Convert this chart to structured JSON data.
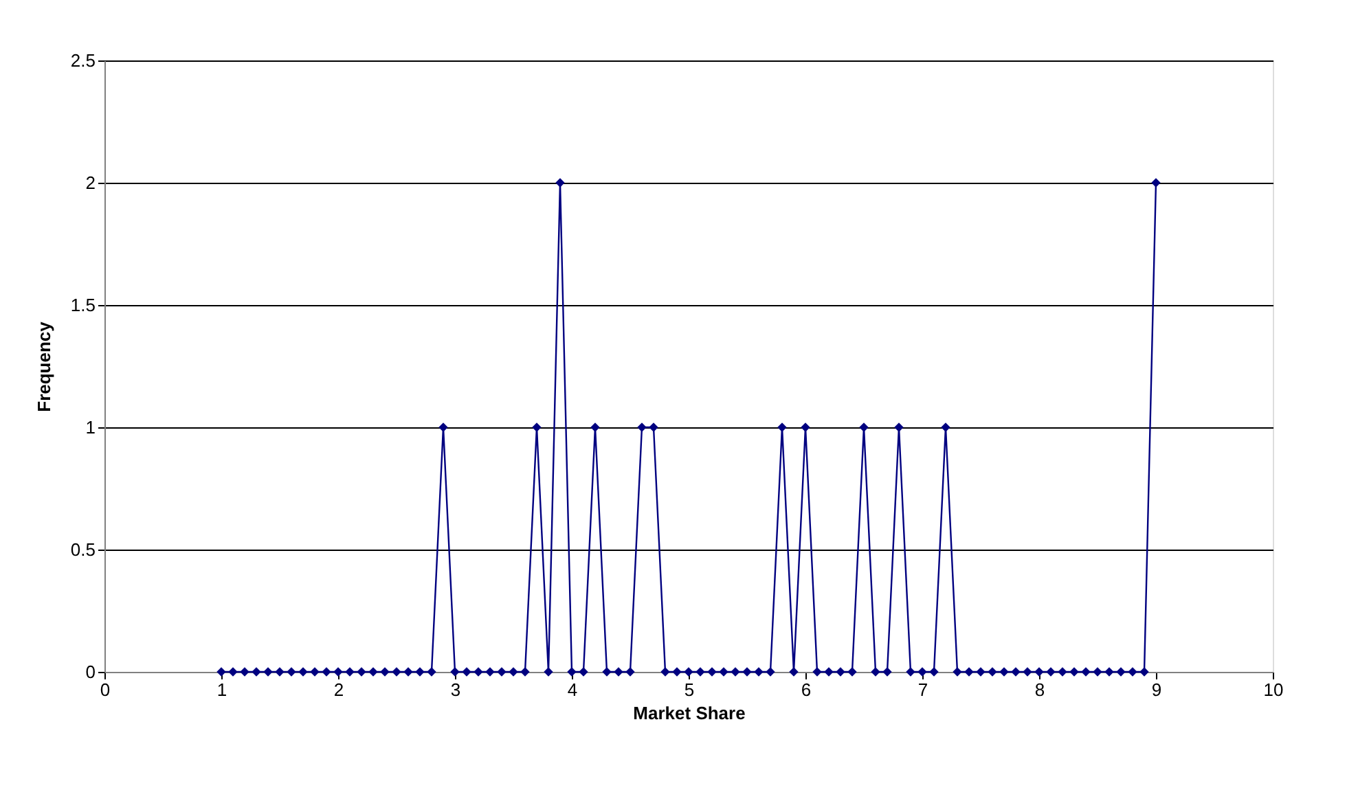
{
  "chart_data": {
    "type": "line",
    "xlabel": "Market Share",
    "ylabel": "Frequency",
    "x": [
      1.0,
      1.1,
      1.2,
      1.3,
      1.4,
      1.5,
      1.6,
      1.7,
      1.8,
      1.9,
      2.0,
      2.1,
      2.2,
      2.3,
      2.4,
      2.5,
      2.6,
      2.7,
      2.8,
      2.9,
      3.0,
      3.1,
      3.2,
      3.3,
      3.4,
      3.5,
      3.6,
      3.7,
      3.8,
      3.9,
      4.0,
      4.1,
      4.2,
      4.3,
      4.4,
      4.5,
      4.6,
      4.7,
      4.8,
      4.9,
      5.0,
      5.1,
      5.2,
      5.3,
      5.4,
      5.5,
      5.6,
      5.7,
      5.8,
      5.9,
      6.0,
      6.1,
      6.2,
      6.3,
      6.4,
      6.5,
      6.6,
      6.7,
      6.8,
      6.9,
      7.0,
      7.1,
      7.2,
      7.3,
      7.4,
      7.5,
      7.6,
      7.7,
      7.8,
      7.9,
      8.0,
      8.1,
      8.2,
      8.3,
      8.4,
      8.5,
      8.6,
      8.7,
      8.8,
      8.9,
      9.0
    ],
    "series": [
      {
        "color": "#000080",
        "values": [
          0,
          0,
          0,
          0,
          0,
          0,
          0,
          0,
          0,
          0,
          0,
          0,
          0,
          0,
          0,
          0,
          0,
          0,
          0,
          1,
          0,
          0,
          0,
          0,
          0,
          0,
          0,
          1,
          0,
          2,
          0,
          0,
          1,
          0,
          0,
          0,
          1,
          1,
          0,
          0,
          0,
          0,
          0,
          0,
          0,
          0,
          0,
          0,
          1,
          0,
          1,
          0,
          0,
          0,
          0,
          1,
          0,
          0,
          1,
          0,
          0,
          0,
          1,
          0,
          0,
          0,
          0,
          0,
          0,
          0,
          0,
          0,
          0,
          0,
          0,
          0,
          0,
          0,
          0,
          0,
          2
        ]
      }
    ],
    "xlim": [
      0,
      10
    ],
    "xticks": [
      0,
      1,
      2,
      3,
      4,
      5,
      6,
      7,
      8,
      9,
      10
    ],
    "ylim": [
      0,
      2.5
    ],
    "yticks": [
      0,
      0.5,
      1,
      1.5,
      2,
      2.5
    ],
    "grid": "y",
    "legend": false,
    "marker": "diamond",
    "line_style": "solid"
  }
}
